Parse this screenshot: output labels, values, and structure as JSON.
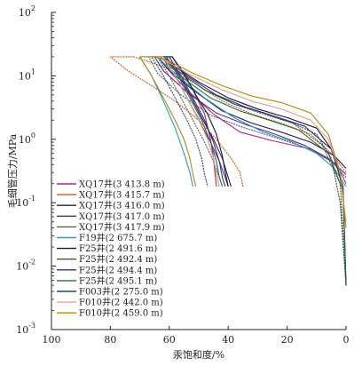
{
  "chart_data": {
    "type": "line",
    "xlabel": "汞饱和度/%",
    "ylabel": "毛细管压力/MPa",
    "x_reversed": true,
    "xlim": [
      100,
      0
    ],
    "ylim": [
      0.001,
      100
    ],
    "y_scale": "log",
    "x_ticks": [
      "100",
      "80",
      "60",
      "40",
      "20",
      "0"
    ],
    "y_ticks": [
      {
        "base": "10",
        "exp": "2"
      },
      {
        "base": "10",
        "exp": "1"
      },
      {
        "base": "10",
        "exp": "0"
      },
      {
        "base": "10",
        "exp": "-1"
      },
      {
        "base": "10",
        "exp": "-2"
      },
      {
        "base": "10",
        "exp": "-3"
      }
    ],
    "legend_position": "bottom-left",
    "series": [
      {
        "name": "XQ17井(3 413.8 m)",
        "color": "#b0208c",
        "points": [
          [
            0,
            0.2
          ],
          [
            3,
            0.4
          ],
          [
            12,
            0.7
          ],
          [
            25,
            0.95
          ],
          [
            36,
            1.3
          ],
          [
            45,
            2.5
          ],
          [
            54,
            6
          ],
          [
            60,
            12
          ],
          [
            62,
            20
          ],
          [
            59,
            20
          ],
          [
            56,
            12
          ],
          [
            52,
            6
          ],
          [
            48,
            2.5
          ],
          [
            46,
            1
          ],
          [
            45,
            0.5
          ],
          [
            44,
            0.18
          ]
        ]
      },
      {
        "name": "XQ17井(3 415.7 m)",
        "color": "#c95a1a",
        "points": [
          [
            0,
            0.3
          ],
          [
            5,
            0.6
          ],
          [
            12,
            1.2
          ],
          [
            22,
            1.8
          ],
          [
            32,
            2.5
          ],
          [
            42,
            4
          ],
          [
            52,
            8
          ],
          [
            62,
            14
          ],
          [
            72,
            20
          ],
          [
            80,
            20
          ],
          [
            74,
            12
          ],
          [
            66,
            7
          ],
          [
            58,
            4
          ],
          [
            50,
            2
          ],
          [
            44,
            1
          ],
          [
            39,
            0.5
          ],
          [
            36,
            0.3
          ],
          [
            35,
            0.18
          ]
        ]
      },
      {
        "name": "XQ17井(3 416.0 m)",
        "color": "#2a1a5a",
        "points": [
          [
            0,
            0.35
          ],
          [
            4,
            0.55
          ],
          [
            12,
            0.9
          ],
          [
            22,
            1.3
          ],
          [
            32,
            1.8
          ],
          [
            42,
            2.8
          ],
          [
            52,
            6
          ],
          [
            60,
            12
          ],
          [
            64,
            20
          ],
          [
            61,
            20
          ],
          [
            57,
            11
          ],
          [
            53,
            5
          ],
          [
            49,
            2.2
          ],
          [
            45,
            1
          ],
          [
            42,
            0.5
          ],
          [
            40,
            0.25
          ],
          [
            39,
            0.18
          ]
        ]
      },
      {
        "name": "XQ17井(3 417.0 m)",
        "color": "#5b2d80",
        "points": [
          [
            0,
            0.28
          ],
          [
            6,
            0.5
          ],
          [
            14,
            0.8
          ],
          [
            24,
            1.2
          ],
          [
            34,
            1.7
          ],
          [
            44,
            2.6
          ],
          [
            54,
            5.5
          ],
          [
            62,
            12
          ],
          [
            65,
            20
          ],
          [
            62,
            20
          ],
          [
            58,
            10
          ],
          [
            54,
            4.5
          ],
          [
            50,
            2
          ],
          [
            46,
            0.9
          ],
          [
            43,
            0.45
          ],
          [
            41,
            0.25
          ],
          [
            40,
            0.18
          ]
        ]
      },
      {
        "name": "XQ17井(3 417.9 m)",
        "color": "#5a5a5a",
        "points": [
          [
            0,
            0.25
          ],
          [
            5,
            0.45
          ],
          [
            14,
            0.75
          ],
          [
            25,
            1.1
          ],
          [
            36,
            1.6
          ],
          [
            46,
            2.4
          ],
          [
            56,
            5
          ],
          [
            64,
            11
          ],
          [
            67,
            20
          ],
          [
            64,
            20
          ],
          [
            60,
            10
          ],
          [
            56,
            4.5
          ],
          [
            52,
            2
          ],
          [
            48,
            0.9
          ],
          [
            45,
            0.45
          ],
          [
            43,
            0.25
          ],
          [
            42,
            0.18
          ]
        ]
      },
      {
        "name": "F19井(2 675.7 m)",
        "color": "#1e9fd0",
        "points": [
          [
            0,
            0.18
          ],
          [
            4,
            0.35
          ],
          [
            10,
            0.6
          ],
          [
            18,
            0.9
          ],
          [
            28,
            1.3
          ],
          [
            38,
            2.2
          ],
          [
            48,
            4.5
          ],
          [
            56,
            9
          ],
          [
            62,
            16
          ],
          [
            64,
            20
          ],
          [
            70,
            20
          ],
          [
            66,
            10
          ],
          [
            62,
            4
          ],
          [
            58,
            1.5
          ],
          [
            55,
            0.6
          ],
          [
            53,
            0.3
          ],
          [
            52,
            0.18
          ]
        ]
      },
      {
        "name": "F25井(2 491.6 m)",
        "color": "#1a1a1a",
        "points": [
          [
            0,
            0.005
          ],
          [
            1,
            0.15
          ],
          [
            4,
            0.6
          ],
          [
            10,
            1.5
          ],
          [
            20,
            2.2
          ],
          [
            30,
            3
          ],
          [
            40,
            4.5
          ],
          [
            50,
            8
          ],
          [
            58,
            14
          ],
          [
            62,
            20
          ],
          [
            59,
            20
          ],
          [
            55,
            11
          ],
          [
            51,
            5
          ],
          [
            47,
            2.5
          ],
          [
            44,
            1.2
          ],
          [
            42,
            0.55
          ],
          [
            41,
            0.3
          ],
          [
            40,
            0.18
          ]
        ]
      },
      {
        "name": "F25井(2 492.4 m)",
        "color": "#6a4a1e",
        "points": [
          [
            0,
            0.005
          ],
          [
            2,
            0.2
          ],
          [
            8,
            0.8
          ],
          [
            18,
            1.8
          ],
          [
            28,
            2.6
          ],
          [
            38,
            3.6
          ],
          [
            48,
            6
          ],
          [
            56,
            11
          ],
          [
            62,
            18
          ],
          [
            64,
            20
          ],
          [
            62,
            20
          ],
          [
            58,
            10
          ],
          [
            54,
            4.5
          ],
          [
            50,
            2.1
          ],
          [
            47,
            1
          ],
          [
            45,
            0.5
          ],
          [
            44,
            0.28
          ],
          [
            43,
            0.18
          ]
        ]
      },
      {
        "name": "F25井(2 494.4 m)",
        "color": "#2b2b9a",
        "points": [
          [
            0,
            0.005
          ],
          [
            1,
            0.18
          ],
          [
            5,
            0.7
          ],
          [
            14,
            1.6
          ],
          [
            24,
            2.3
          ],
          [
            34,
            3.2
          ],
          [
            44,
            5
          ],
          [
            54,
            10
          ],
          [
            60,
            17
          ],
          [
            62,
            20
          ],
          [
            60,
            20
          ],
          [
            56,
            10
          ],
          [
            52,
            4.5
          ],
          [
            48,
            2
          ],
          [
            45,
            0.9
          ],
          [
            43,
            0.45
          ],
          [
            42,
            0.25
          ],
          [
            41,
            0.18
          ]
        ]
      },
      {
        "name": "F25井(2 495.1 m)",
        "color": "#2c6b3a",
        "points": [
          [
            0,
            0.005
          ],
          [
            1,
            0.15
          ],
          [
            6,
            0.6
          ],
          [
            16,
            1.4
          ],
          [
            26,
            2
          ],
          [
            36,
            2.8
          ],
          [
            46,
            4.5
          ],
          [
            55,
            9
          ],
          [
            61,
            16
          ],
          [
            63,
            20
          ],
          [
            61,
            20
          ],
          [
            57,
            10
          ],
          [
            53,
            4.5
          ],
          [
            49,
            2
          ],
          [
            46,
            0.9
          ],
          [
            44,
            0.45
          ],
          [
            43,
            0.25
          ],
          [
            42,
            0.18
          ]
        ]
      },
      {
        "name": "F003井(2 275.0 m)",
        "color": "#1c4a6a",
        "points": [
          [
            0,
            0.005
          ],
          [
            2,
            0.1
          ],
          [
            5,
            0.5
          ],
          [
            10,
            1.2
          ],
          [
            18,
            1.8
          ],
          [
            28,
            2.5
          ],
          [
            38,
            3.6
          ],
          [
            48,
            6
          ],
          [
            56,
            11
          ],
          [
            62,
            18
          ],
          [
            65,
            20
          ],
          [
            66,
            20
          ],
          [
            62,
            10
          ],
          [
            58,
            4.5
          ],
          [
            54,
            2
          ],
          [
            51,
            1
          ],
          [
            49,
            0.5
          ],
          [
            48,
            0.28
          ],
          [
            47,
            0.18
          ]
        ]
      },
      {
        "name": "F010井(2 442.0 m)",
        "color": "#e8a090",
        "points": [
          [
            0,
            0.05
          ],
          [
            2,
            0.3
          ],
          [
            6,
            1
          ],
          [
            12,
            2
          ],
          [
            22,
            3
          ],
          [
            32,
            4
          ],
          [
            42,
            6
          ],
          [
            52,
            10
          ],
          [
            60,
            16
          ],
          [
            64,
            20
          ],
          [
            62,
            20
          ],
          [
            58,
            10
          ],
          [
            54,
            4.5
          ],
          [
            50,
            2
          ],
          [
            47,
            1
          ],
          [
            45,
            0.5
          ],
          [
            44,
            0.28
          ],
          [
            43,
            0.18
          ]
        ]
      },
      {
        "name": "F010井(2 459.0 m)",
        "color": "#b08a10",
        "points": [
          [
            0,
            0.04
          ],
          [
            2,
            0.3
          ],
          [
            6,
            1.2
          ],
          [
            12,
            2.6
          ],
          [
            22,
            3.8
          ],
          [
            32,
            4.8
          ],
          [
            42,
            7
          ],
          [
            52,
            11
          ],
          [
            60,
            17
          ],
          [
            65,
            20
          ],
          [
            70,
            20
          ],
          [
            66,
            10
          ],
          [
            62,
            4.5
          ],
          [
            58,
            2
          ],
          [
            55,
            1
          ],
          [
            53,
            0.5
          ],
          [
            52,
            0.28
          ],
          [
            51,
            0.18
          ]
        ]
      }
    ]
  }
}
